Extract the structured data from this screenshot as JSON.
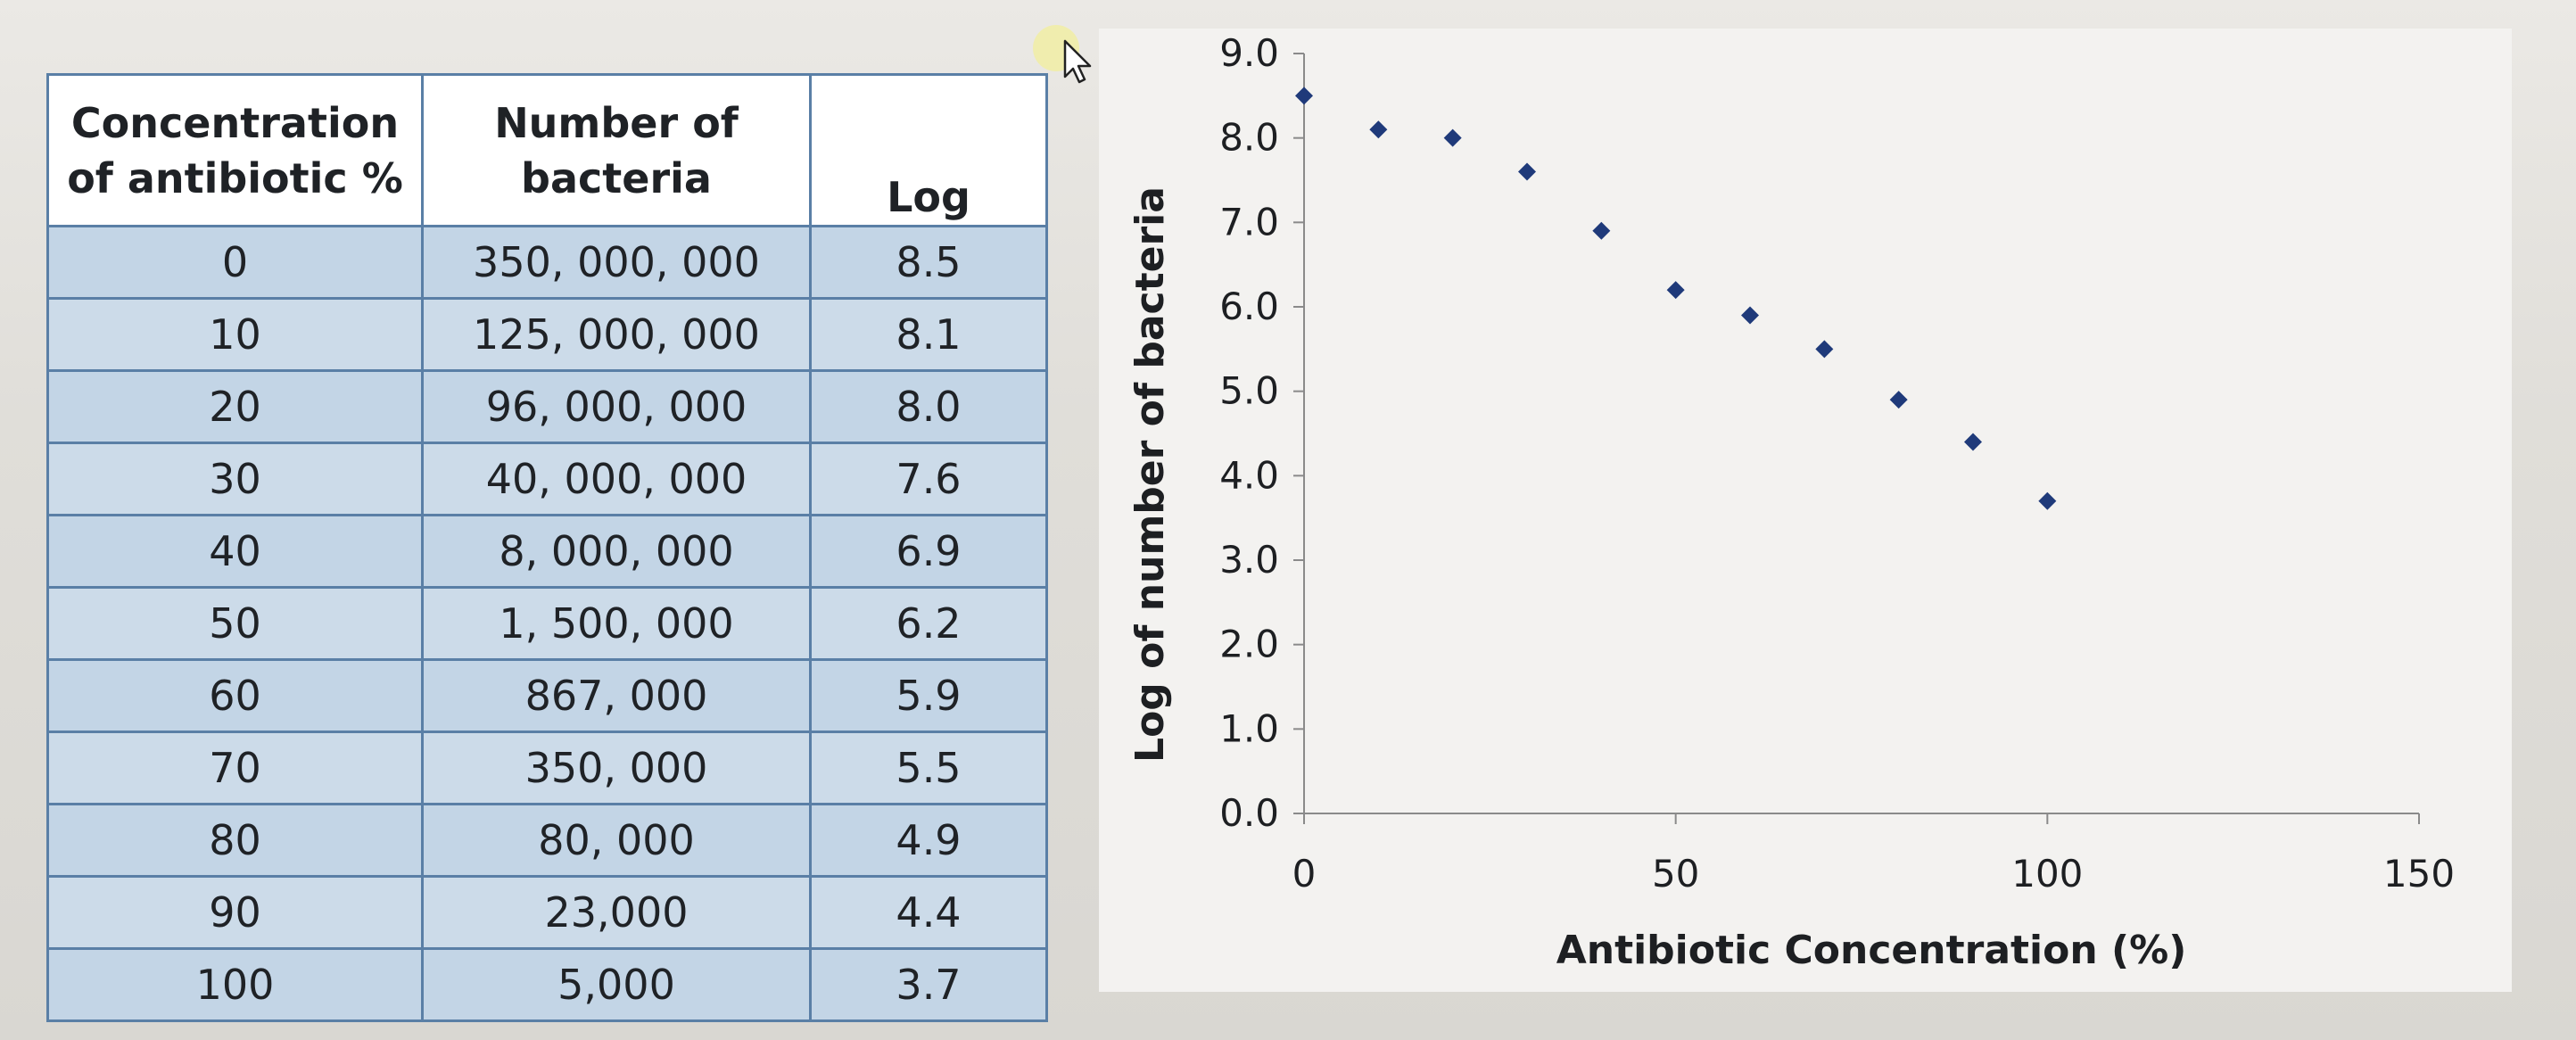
{
  "table": {
    "headers": [
      [
        "Concentration",
        "of antibiotic %"
      ],
      [
        "Number of",
        "bacteria"
      ],
      [
        "Log"
      ]
    ],
    "rows": [
      [
        "0",
        "350, 000, 000",
        "8.5"
      ],
      [
        "10",
        "125, 000, 000",
        "8.1"
      ],
      [
        "20",
        "96, 000, 000",
        "8.0"
      ],
      [
        "30",
        "40, 000, 000",
        "7.6"
      ],
      [
        "40",
        "8, 000, 000",
        "6.9"
      ],
      [
        "50",
        "1, 500, 000",
        "6.2"
      ],
      [
        "60",
        "867, 000",
        "5.9"
      ],
      [
        "70",
        "350, 000",
        "5.5"
      ],
      [
        "80",
        "80, 000",
        "4.9"
      ],
      [
        "90",
        "23,000",
        "4.4"
      ],
      [
        "100",
        "5,000",
        "3.7"
      ]
    ]
  },
  "chart_data": {
    "type": "scatter",
    "title": "",
    "xlabel": "Antibiotic Concentration (%)",
    "ylabel": "Log of number of bacteria",
    "xlim": [
      0,
      150
    ],
    "ylim": [
      0,
      9
    ],
    "xticks": [
      "0",
      "50",
      "100",
      "150"
    ],
    "yticks": [
      "0.0",
      "1.0",
      "2.0",
      "3.0",
      "4.0",
      "5.0",
      "6.0",
      "7.0",
      "8.0",
      "9.0"
    ],
    "grid": false,
    "marker": "diamond",
    "marker_color": "#1f3a7a",
    "series": [
      {
        "x": [
          0,
          10,
          20,
          30,
          40,
          50,
          60,
          70,
          80,
          90,
          100
        ],
        "y": [
          8.5,
          8.1,
          8.0,
          7.6,
          6.9,
          6.2,
          5.9,
          5.5,
          4.9,
          4.4,
          3.7
        ]
      }
    ]
  },
  "colors": {
    "table_border": "#5a7fa6",
    "table_fill": "#c3d5e6",
    "marker": "#1f3a7a"
  }
}
